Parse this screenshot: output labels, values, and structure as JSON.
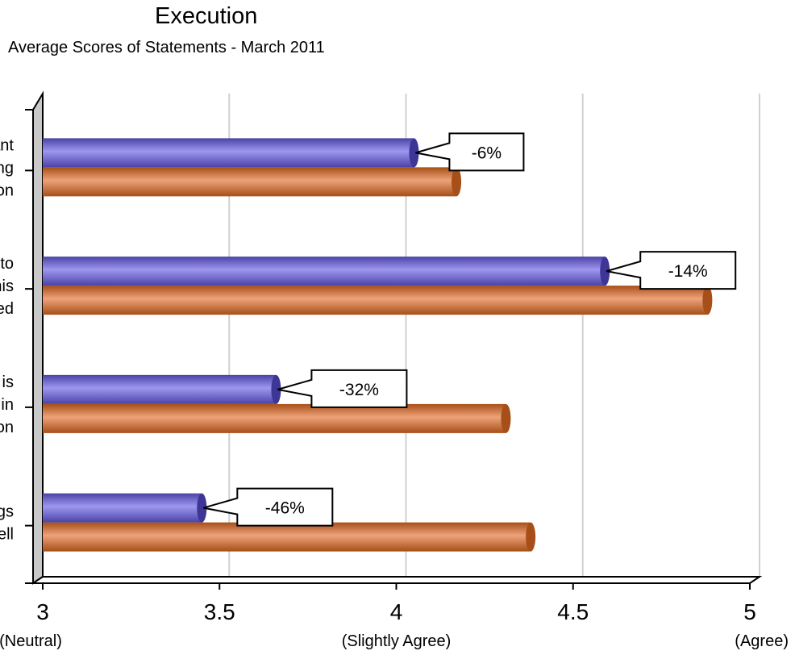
{
  "chart_data": {
    "type": "bar",
    "orientation": "horizontal",
    "title": "Execution",
    "subtitle": "Average Scores of Statements - March 2011",
    "xlim": [
      3,
      5
    ],
    "xticks": [
      3,
      3.5,
      4,
      4.5,
      5
    ],
    "xtick_labels": [
      "3",
      "3.5",
      "4",
      "4.5",
      "5"
    ],
    "xtick_sublabels": [
      "(Neutral)",
      "",
      "(Slightly Agree)",
      "",
      "(Agree)"
    ],
    "grid": true,
    "legend": "none",
    "categories": [
      [
        "ant",
        "ng",
        "on"
      ],
      [
        "to",
        "his",
        "ed"
      ],
      [
        "t is",
        "in",
        "on"
      ],
      [
        "gs",
        "vell"
      ]
    ],
    "series": [
      {
        "color": "#6a63c9",
        "values": [
          4.05,
          4.59,
          3.66,
          3.45
        ]
      },
      {
        "color": "#c8692b",
        "values": [
          4.17,
          4.88,
          4.31,
          4.38
        ]
      }
    ],
    "annotations": [
      "-6%",
      "-14%",
      "-32%",
      "-46%"
    ]
  }
}
